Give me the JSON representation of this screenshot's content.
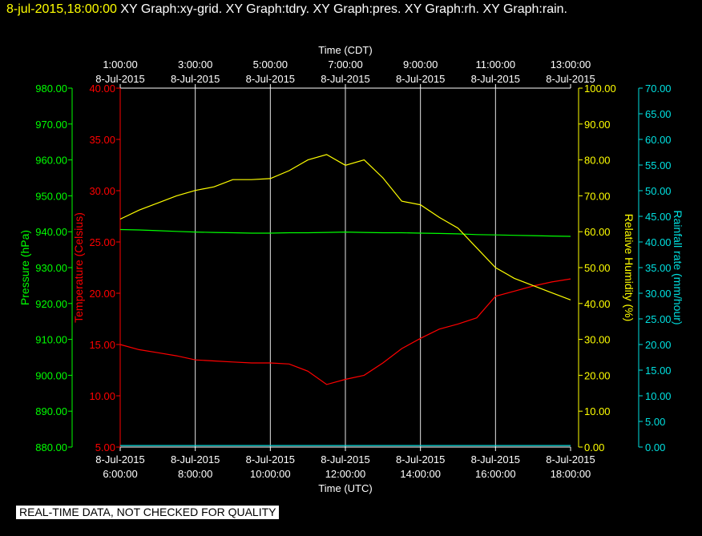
{
  "header": {
    "timestamp": "8-jul-2015,18:00:00",
    "graphs": [
      "XY Graph:xy-grid.",
      "XY Graph:tdry.",
      "XY Graph:pres.",
      "XY Graph:rh.",
      "XY Graph:rain."
    ]
  },
  "footer": {
    "disclaimer": "REAL-TIME DATA, NOT CHECKED FOR QUALITY"
  },
  "chart_data": {
    "type": "line",
    "grid": true,
    "colors": {
      "temperature": "#ff0000",
      "pressure": "#00ff00",
      "humidity": "#ffff00",
      "rain": "#00e0e0",
      "grid": "#ffffff"
    },
    "x_top": {
      "label": "Time (CDT)",
      "ticks": [
        {
          "time": "1:00:00",
          "date": "8-Jul-2015"
        },
        {
          "time": "3:00:00",
          "date": "8-Jul-2015"
        },
        {
          "time": "5:00:00",
          "date": "8-Jul-2015"
        },
        {
          "time": "7:00:00",
          "date": "8-Jul-2015"
        },
        {
          "time": "9:00:00",
          "date": "8-Jul-2015"
        },
        {
          "time": "11:00:00",
          "date": "8-Jul-2015"
        },
        {
          "time": "13:00:00",
          "date": "8-Jul-2015"
        }
      ]
    },
    "x_bottom": {
      "label": "Time (UTC)",
      "range": [
        "06:00",
        "18:00"
      ],
      "ticks": [
        {
          "date": "8-Jul-2015",
          "time": "6:00:00"
        },
        {
          "date": "8-Jul-2015",
          "time": "8:00:00"
        },
        {
          "date": "8-Jul-2015",
          "time": "10:00:00"
        },
        {
          "date": "8-Jul-2015",
          "time": "12:00:00"
        },
        {
          "date": "8-Jul-2015",
          "time": "14:00:00"
        },
        {
          "date": "8-Jul-2015",
          "time": "16:00:00"
        },
        {
          "date": "8-Jul-2015",
          "time": "18:00:00"
        }
      ]
    },
    "axes": {
      "pressure": {
        "label": "Pressure (hPa)",
        "range": [
          880,
          980
        ],
        "ticks": [
          "880.00",
          "890.00",
          "900.00",
          "910.00",
          "920.00",
          "930.00",
          "940.00",
          "950.00",
          "960.00",
          "970.00",
          "980.00"
        ]
      },
      "temperature": {
        "label": "Temperature (Celsius)",
        "range": [
          5,
          40
        ],
        "ticks": [
          "5.00",
          "10.00",
          "15.00",
          "20.00",
          "25.00",
          "30.00",
          "35.00",
          "40.00"
        ]
      },
      "humidity": {
        "label": "Relative Humidity (%)",
        "range": [
          0,
          100
        ],
        "ticks": [
          "0.00",
          "10.00",
          "20.00",
          "30.00",
          "40.00",
          "50.00",
          "60.00",
          "70.00",
          "80.00",
          "90.00",
          "100.00"
        ]
      },
      "rain": {
        "label": "Rainfall rate (mm/hour)",
        "range": [
          0,
          70
        ],
        "ticks": [
          "0.00",
          "5.00",
          "10.00",
          "15.00",
          "20.00",
          "25.00",
          "30.00",
          "35.00",
          "40.00",
          "45.00",
          "50.00",
          "55.00",
          "60.00",
          "65.00",
          "70.00"
        ]
      }
    },
    "x_time_utc": [
      "06:00",
      "06:30",
      "07:00",
      "07:30",
      "08:00",
      "08:30",
      "09:00",
      "09:30",
      "10:00",
      "10:30",
      "11:00",
      "11:30",
      "12:00",
      "12:30",
      "13:00",
      "13:30",
      "14:00",
      "14:30",
      "15:00",
      "15:30",
      "16:00",
      "16:30",
      "17:00",
      "17:30",
      "18:00"
    ],
    "series": [
      {
        "key": "temperature",
        "name": "Temperature (Celsius)",
        "axis": "temperature",
        "values": [
          15.0,
          14.5,
          14.2,
          13.9,
          13.5,
          13.4,
          13.3,
          13.2,
          13.2,
          13.1,
          12.4,
          11.1,
          11.6,
          12.0,
          13.2,
          14.6,
          15.6,
          16.5,
          17.0,
          17.6,
          19.7,
          20.2,
          20.7,
          21.1,
          21.4
        ]
      },
      {
        "key": "pressure",
        "name": "Pressure (hPa)",
        "axis": "pressure",
        "values": [
          940.6,
          940.5,
          940.3,
          940.1,
          939.9,
          939.8,
          939.7,
          939.6,
          939.6,
          939.7,
          939.7,
          939.8,
          939.9,
          939.8,
          939.7,
          939.7,
          939.6,
          939.5,
          939.4,
          939.2,
          939.1,
          939.0,
          938.9,
          938.8,
          938.7
        ]
      },
      {
        "key": "humidity",
        "name": "Relative Humidity (%)",
        "axis": "humidity",
        "values": [
          63.5,
          66.0,
          68.0,
          70.0,
          71.5,
          72.5,
          74.5,
          74.5,
          74.8,
          77.0,
          80.0,
          81.5,
          78.5,
          80.0,
          75.0,
          68.5,
          67.5,
          64.0,
          61.0,
          55.5,
          50.0,
          47.0,
          45.0,
          43.0,
          41.0
        ]
      },
      {
        "key": "rain",
        "name": "Rainfall rate (mm/hour)",
        "axis": "rain",
        "values": [
          0.3,
          0.3,
          0.3,
          0.3,
          0.3,
          0.3,
          0.3,
          0.3,
          0.3,
          0.3,
          0.3,
          0.3,
          0.3,
          0.3,
          0.3,
          0.3,
          0.3,
          0.3,
          0.3,
          0.3,
          0.3,
          0.3,
          0.3,
          0.3,
          0.3
        ]
      }
    ]
  }
}
